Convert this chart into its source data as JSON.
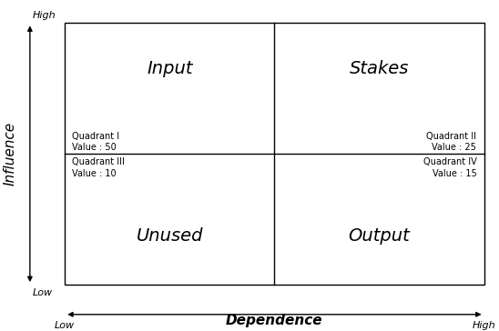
{
  "quadrant_labels": {
    "top_left": "Input",
    "top_right": "Stakes",
    "bottom_left": "Unused",
    "bottom_right": "Output"
  },
  "quadrant_info": {
    "top_left": {
      "line1": "Quadrant I",
      "line2": "Value : 50"
    },
    "top_right": {
      "line1": "Quadrant II",
      "line2": "Value : 25"
    },
    "bottom_left": {
      "line1": "Quadrant III",
      "line2": "Value : 10"
    },
    "bottom_right": {
      "line1": "Quadrant IV",
      "line2": "Value : 15"
    }
  },
  "y_axis_label": "Influence",
  "x_axis_label": "Dependence",
  "y_high_label": "High",
  "y_low_label": "Low",
  "x_low_label": "Low",
  "x_high_label": "High",
  "bg_color": "#ffffff",
  "line_color": "#000000",
  "text_color": "#000000",
  "large_font_size": 14,
  "small_font_size": 7,
  "axis_label_font_size": 11,
  "tick_label_font_size": 8
}
